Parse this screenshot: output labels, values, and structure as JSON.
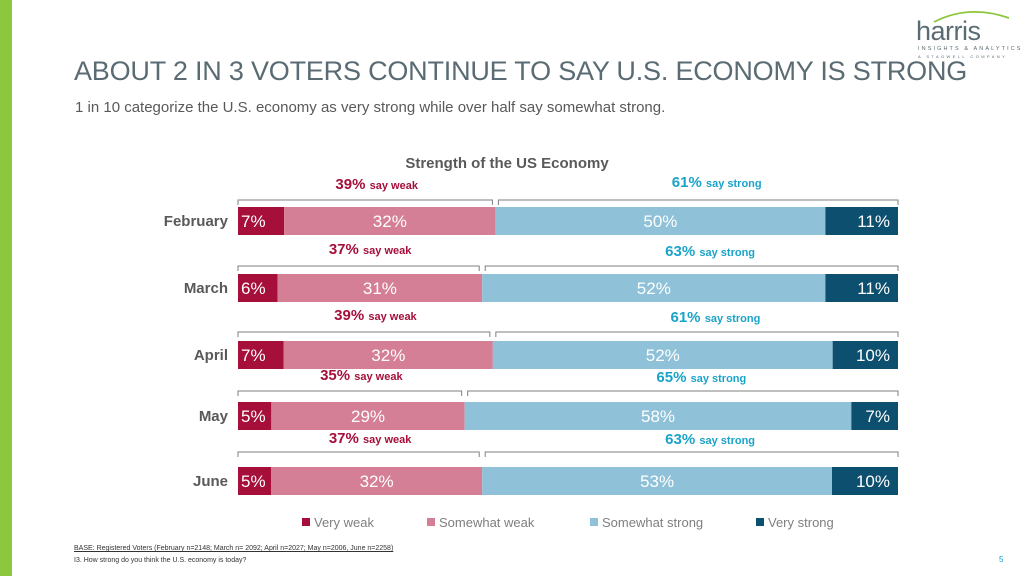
{
  "logo": {
    "brand": "harris",
    "tagline": "INSIGHTS & ANALYTICS",
    "parent": "A STAGWELL COMPANY"
  },
  "title": "ABOUT 2 IN 3 VOTERS CONTINUE TO SAY U.S. ECONOMY IS STRONG",
  "subtitle": "1 in 10 categorize the U.S. economy as very strong while over half say somewhat strong.",
  "footnote": {
    "base": "BASE: Registered Voters (February n=2148; March n= 2092; April n=2027; May n=2006, June n=2258)",
    "question": "I3. How strong do you think the U.S. economy is today?"
  },
  "page_number": "5",
  "colors": {
    "very_weak": "#a50f3a",
    "somewhat_weak": "#d47f95",
    "somewhat_strong": "#8fc1d8",
    "very_strong": "#0d4f6e",
    "weak_text": "#a50f3a",
    "strong_text": "#1aa3c8",
    "title": "#5a6b73",
    "accent_bar": "#8dc63f"
  },
  "chart_data": {
    "type": "bar",
    "orientation": "horizontal",
    "stacked": true,
    "title": "Strength of the US Economy",
    "categories": [
      "February",
      "March",
      "April",
      "May",
      "June"
    ],
    "series": [
      {
        "name": "Very weak",
        "values": [
          7,
          6,
          7,
          5,
          5
        ]
      },
      {
        "name": "Somewhat weak",
        "values": [
          32,
          31,
          32,
          29,
          32
        ]
      },
      {
        "name": "Somewhat strong",
        "values": [
          50,
          52,
          52,
          58,
          53
        ]
      },
      {
        "name": "Very strong",
        "values": [
          11,
          11,
          10,
          7,
          10
        ]
      }
    ],
    "value_suffix": "%",
    "annotations": {
      "weak_totals": [
        "39%",
        "37%",
        "39%",
        "35%",
        "37%"
      ],
      "strong_totals": [
        "61%",
        "63%",
        "61%",
        "65%",
        "63%"
      ],
      "weak_label": "say weak",
      "strong_label": "say strong"
    },
    "xlim": [
      0,
      100
    ],
    "legend_position": "bottom"
  }
}
